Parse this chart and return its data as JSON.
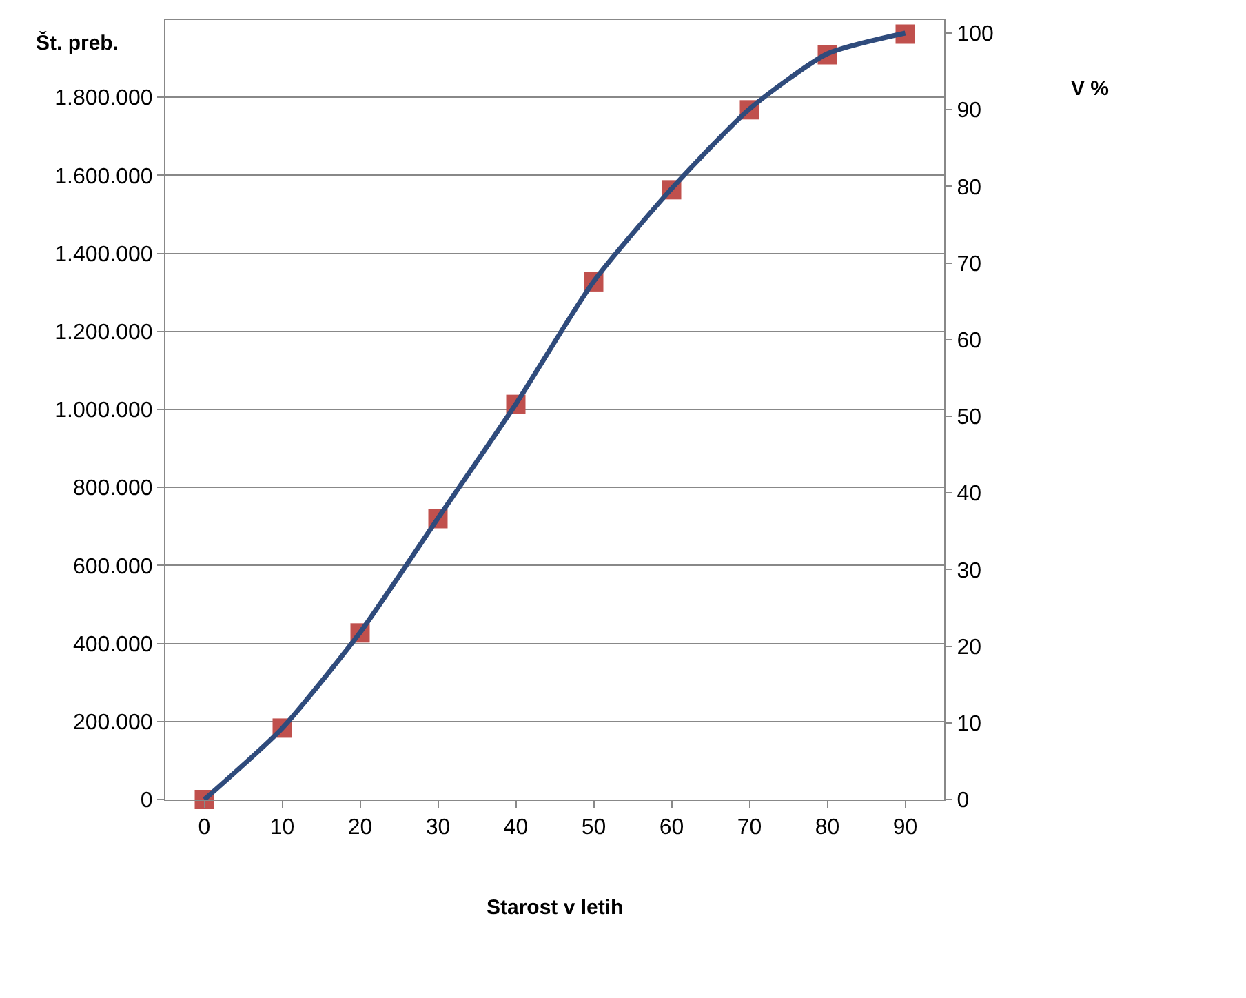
{
  "chart_data": {
    "type": "line",
    "xlabel": "Starost v letih",
    "ylabel": "Št. preb.",
    "y2label": "V %",
    "x": [
      0,
      10,
      20,
      30,
      40,
      50,
      60,
      70,
      80,
      90
    ],
    "series": [
      {
        "type": "scatter",
        "marker": "square",
        "color": "#c0504d",
        "values": [
          0,
          183000,
          427000,
          720000,
          1013000,
          1327000,
          1563000,
          1768000,
          1909000,
          1962000
        ]
      },
      {
        "axis": "y2",
        "marker": "none",
        "color": "#2f4b7c",
        "values": [
          0,
          9.3,
          21.8,
          36.7,
          51.6,
          67.6,
          79.7,
          90.1,
          97.3,
          100
        ]
      }
    ],
    "xlim": [
      -5,
      95
    ],
    "xticks": [
      0,
      10,
      20,
      30,
      40,
      50,
      60,
      70,
      80,
      90
    ],
    "ylim": [
      0,
      2000000
    ],
    "yticks": [
      0,
      {
        "value": 200000,
        "label": "200.000"
      },
      {
        "value": 400000,
        "label": "400.000"
      },
      {
        "value": 600000,
        "label": "600.000"
      },
      {
        "value": 800000,
        "label": "800.000"
      },
      {
        "value": 1000000,
        "label": "1.000.000"
      },
      {
        "value": 1200000,
        "label": "1.200.000"
      },
      {
        "value": 1400000,
        "label": "1.400.000"
      },
      {
        "value": 1600000,
        "label": "1.600.000"
      },
      {
        "value": 1800000,
        "label": "1.800.000"
      }
    ],
    "y2lim": [
      0,
      101.8
    ],
    "y2ticks": [
      0,
      10,
      20,
      30,
      40,
      50,
      60,
      70,
      80,
      90,
      100
    ],
    "grid": "y"
  }
}
